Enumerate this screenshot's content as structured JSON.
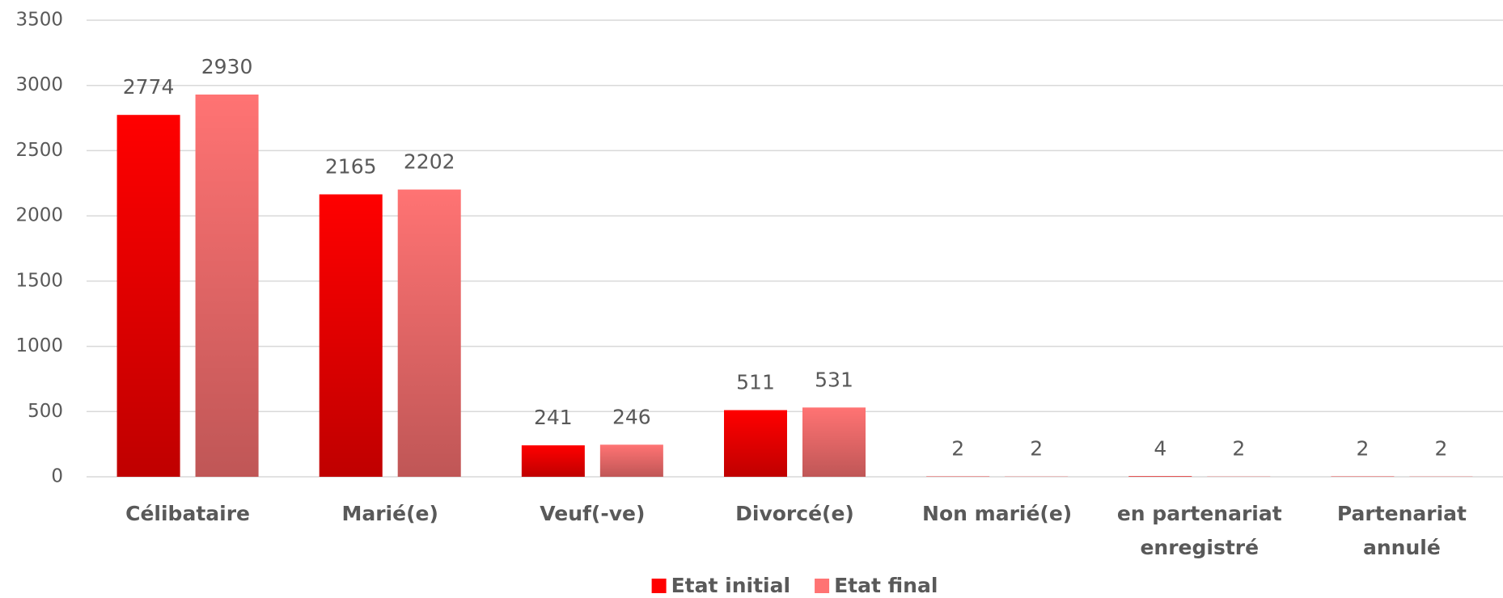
{
  "chart_data": {
    "type": "bar",
    "categories": [
      "Célibataire",
      "Marié(e)",
      "Veuf(-ve)",
      "Divorcé(e)",
      "Non marié(e)",
      "en partenariat enregistré",
      "Partenariat annulé"
    ],
    "series": [
      {
        "name": "Etat initial",
        "color": "#ff0000",
        "values": [
          2774,
          2165,
          241,
          511,
          2,
          4,
          2
        ]
      },
      {
        "name": "Etat final",
        "color": "#ff7373",
        "values": [
          2930,
          2202,
          246,
          531,
          2,
          2,
          2
        ]
      }
    ],
    "ylim": [
      0,
      3500
    ],
    "yticks": [
      0,
      500,
      1000,
      1500,
      2000,
      2500,
      3000,
      3500
    ],
    "grid": true,
    "legend": "bottom"
  }
}
